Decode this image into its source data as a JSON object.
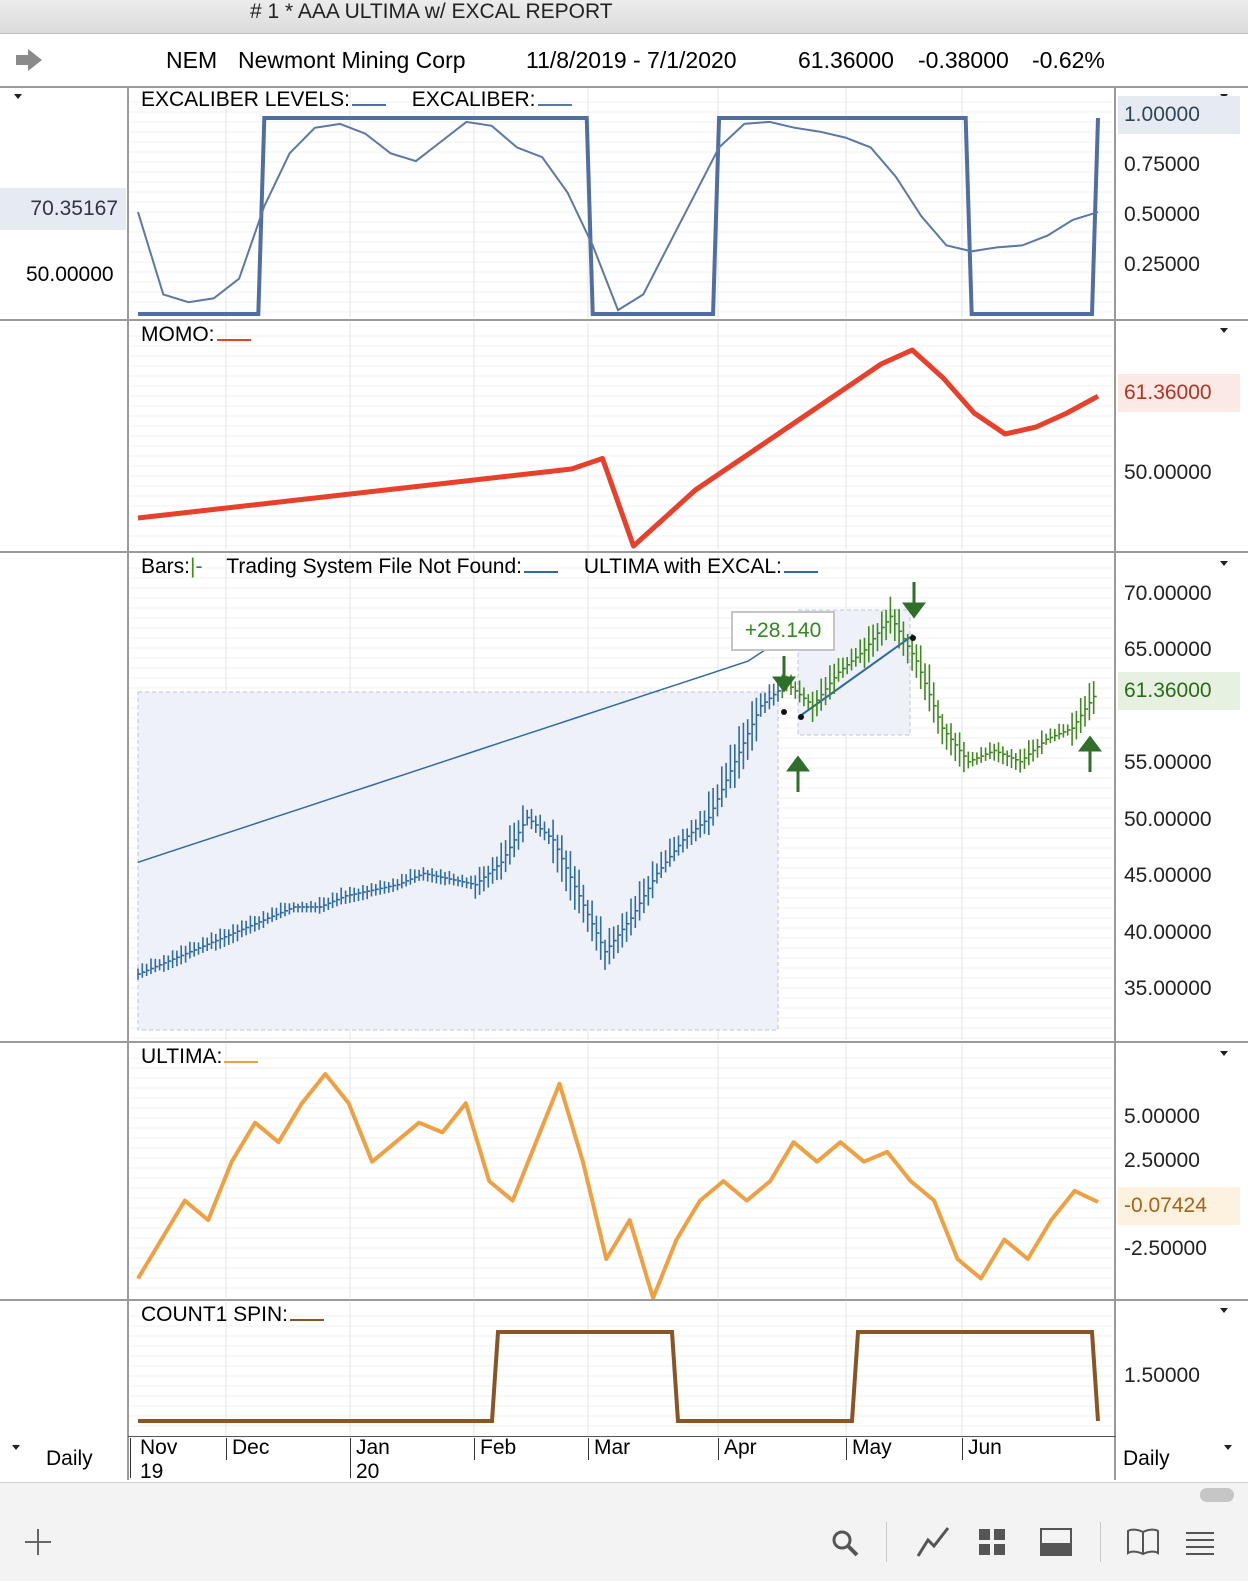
{
  "window": {
    "title": "# 1 * AAA ULTIMA w/ EXCAL REPORT"
  },
  "header": {
    "symbol": "NEM",
    "company": "Newmont Mining Corp",
    "date_range": "11/8/2019 - 7/1/2020",
    "last": "61.36000",
    "change": "-0.38000",
    "change_pct": "-0.62%"
  },
  "left_axis": {
    "value_badge": "70.35167",
    "label": "50.00000",
    "period": "Daily"
  },
  "right_axis": {
    "period": "Daily"
  },
  "panels": {
    "excaliber": {
      "labels": [
        "EXCALIBER LEVELS:",
        "EXCALIBER:"
      ],
      "ticks": [
        "0.75000",
        "0.50000",
        "0.25000"
      ],
      "badge": "1.00000",
      "colors": {
        "levels": "#4f6fa3",
        "excaliber": "#5a78a8"
      }
    },
    "momo": {
      "labels": [
        "MOMO:"
      ],
      "ticks": [
        "50.00000"
      ],
      "badge": "61.36000",
      "color": "#e8402a"
    },
    "bars": {
      "labels": [
        "Bars:",
        "Trading System File Not Found:",
        "ULTIMA with EXCAL:"
      ],
      "ticks": [
        "70.00000",
        "65.00000",
        "55.00000",
        "50.00000",
        "45.00000",
        "40.00000",
        "35.00000"
      ],
      "badge": "61.36000",
      "annotation": "+28.140",
      "colors": {
        "up": "#2e6aa6",
        "down": "#3f8a1f"
      }
    },
    "ultima": {
      "labels": [
        "ULTIMA:"
      ],
      "ticks": [
        "5.00000",
        "2.50000",
        "-2.50000"
      ],
      "badge": "-0.07424",
      "color": "#f0a040"
    },
    "count1": {
      "labels": [
        "COUNT1 SPIN:"
      ],
      "ticks": [
        "1.50000"
      ],
      "color": "#8a5524"
    }
  },
  "x_axis": {
    "months": [
      "Nov",
      "Dec",
      "Jan",
      "Feb",
      "Mar",
      "Apr",
      "May",
      "Jun"
    ],
    "years": [
      "19",
      "20"
    ]
  },
  "toolbar": {
    "icons": [
      "plus-icon",
      "search-icon",
      "line-chart-icon",
      "grid-icon",
      "panel-icon",
      "book-icon",
      "list-icon"
    ]
  },
  "chart_data": [
    {
      "type": "line",
      "title": "",
      "series": [
        {
          "name": "EXCALIBER LEVELS",
          "values": [
            0,
            0,
            0,
            0,
            0,
            1,
            1,
            1,
            1,
            1,
            1,
            1,
            1,
            1,
            1,
            1,
            1,
            1,
            0,
            0,
            0,
            0,
            0,
            1,
            1,
            1,
            1,
            1,
            1,
            1,
            1,
            1,
            1,
            0,
            0,
            0,
            0,
            0,
            1
          ]
        },
        {
          "name": "EXCALIBER",
          "values": [
            0.52,
            0.1,
            0.06,
            0.08,
            0.18,
            0.55,
            0.82,
            0.95,
            0.97,
            0.92,
            0.82,
            0.78,
            0.88,
            0.98,
            0.96,
            0.85,
            0.8,
            0.62,
            0.35,
            0.02,
            0.1,
            0.35,
            0.6,
            0.85,
            0.97,
            0.98,
            0.95,
            0.93,
            0.9,
            0.85,
            0.7,
            0.5,
            0.35,
            0.32,
            0.34,
            0.35,
            0.4,
            0.48,
            0.52
          ]
        }
      ]
    },
    {
      "type": "line",
      "title": "",
      "series": [
        {
          "name": "MOMO",
          "values": [
            44,
            44.5,
            45,
            45.5,
            46,
            46.5,
            47,
            47.5,
            48,
            48.5,
            49,
            49.5,
            50,
            50.5,
            51,
            52.5,
            40,
            44,
            48,
            51,
            54,
            57,
            60,
            63,
            66,
            68,
            64,
            59,
            56,
            57,
            59,
            61.4
          ]
        }
      ]
    },
    {
      "type": "line",
      "title": "",
      "series": [
        {
          "name": "ULTIMA with EXCAL",
          "values": [
            46,
            47,
            48,
            49,
            50,
            51,
            52,
            53,
            54,
            55,
            56,
            57,
            58,
            59,
            60,
            61,
            62,
            63,
            64,
            66
          ]
        },
        {
          "name": "Bars",
          "values": [
            36,
            37,
            38,
            39,
            40,
            41,
            42,
            42,
            43,
            43.5,
            44,
            45,
            44.5,
            44,
            46,
            50,
            48,
            43,
            38,
            41,
            45,
            48,
            50,
            55,
            60,
            62,
            60,
            63,
            65,
            68,
            64,
            58,
            55,
            56,
            55,
            57,
            58,
            61.4
          ]
        }
      ]
    },
    {
      "type": "line",
      "title": "",
      "series": [
        {
          "name": "ULTIMA",
          "values": [
            -4,
            -2,
            0,
            -1,
            2,
            4,
            3,
            5,
            6.5,
            5,
            2,
            3,
            4,
            3.5,
            5,
            1,
            0,
            3,
            6,
            2,
            -3,
            -1,
            -5,
            -2,
            0,
            1,
            0,
            1,
            3,
            2,
            3,
            2,
            2.5,
            1,
            0,
            -3,
            -4,
            -2,
            -3,
            -1,
            0.5,
            -0.07
          ]
        }
      ]
    },
    {
      "type": "line",
      "title": "",
      "series": [
        {
          "name": "COUNT1 SPIN",
          "values": [
            1,
            1,
            1,
            1,
            1,
            1,
            2,
            2,
            2,
            1,
            1,
            1,
            2,
            2,
            2,
            2,
            1
          ]
        }
      ]
    }
  ]
}
